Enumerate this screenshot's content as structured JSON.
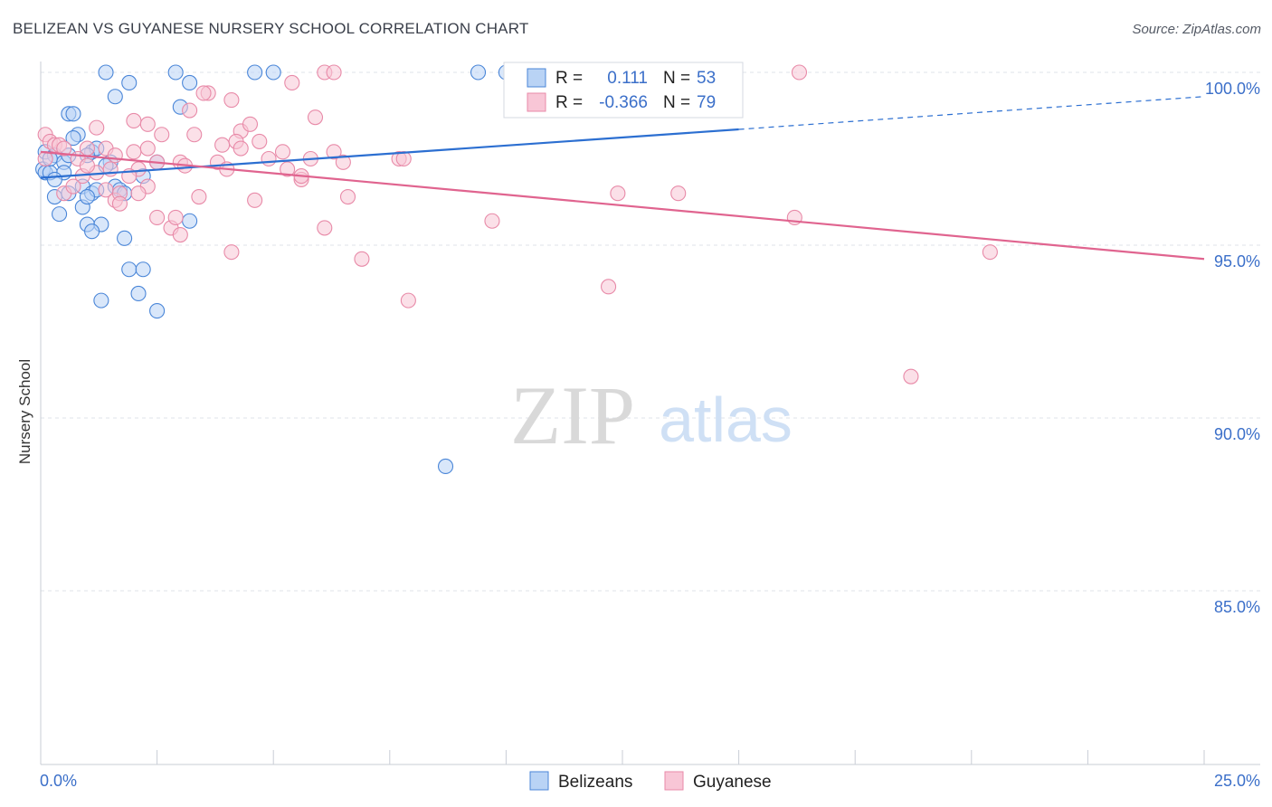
{
  "header": {
    "title": "BELIZEAN VS GUYANESE NURSERY SCHOOL CORRELATION CHART",
    "source": "Source: ZipAtlas.com"
  },
  "watermark": {
    "zip": "ZIP",
    "atlas": "atlas"
  },
  "colors": {
    "blue": "#4a86d8",
    "blue_fill": "#b9d3f5",
    "blue_line": "#2c6fd1",
    "pink": "#e88aa8",
    "pink_fill": "#f8c6d6",
    "pink_line": "#e0648f",
    "axis_text": "#3b6fc9",
    "grid": "#dfe3ea"
  },
  "legend_box": {
    "rows": [
      {
        "r_label": "R =",
        "r_value": "0.111",
        "n_label": "N =",
        "n_value": "53"
      },
      {
        "r_label": "R =",
        "r_value": "-0.366",
        "n_label": "N =",
        "n_value": "79"
      }
    ]
  },
  "bottom_legend": {
    "items": [
      "Belizeans",
      "Guyanese"
    ]
  },
  "chart_data": {
    "type": "scatter",
    "title": "BELIZEAN VS GUYANESE NURSERY SCHOOL CORRELATION CHART",
    "xlabel": "",
    "ylabel": "Nursery School",
    "xlim": [
      0,
      25
    ],
    "ylim": [
      80.5,
      101
    ],
    "x_tick_labels": [
      "0.0%",
      "25.0%"
    ],
    "y_ticks": [
      100,
      95,
      90,
      85
    ],
    "y_tick_labels": [
      "100.0%",
      "95.0%",
      "90.0%",
      "85.0%"
    ],
    "grid": true,
    "series": [
      {
        "name": "Belizeans",
        "r": 0.111,
        "n": 53,
        "trend": {
          "x0": 0,
          "y0": 96.95,
          "x1": 15,
          "y1": 98.35,
          "dashed_to_x": 25,
          "dashed_to_y": 99.3
        },
        "points": [
          [
            1.4,
            100
          ],
          [
            2.9,
            100
          ],
          [
            4.6,
            100
          ],
          [
            5.0,
            100
          ],
          [
            9.4,
            100
          ],
          [
            10.0,
            100
          ],
          [
            1.9,
            99.7
          ],
          [
            3.2,
            99.7
          ],
          [
            1.6,
            99.3
          ],
          [
            3.0,
            99.0
          ],
          [
            0.6,
            98.8
          ],
          [
            0.7,
            98.8
          ],
          [
            0.8,
            98.2
          ],
          [
            0.7,
            98.1
          ],
          [
            0.1,
            97.7
          ],
          [
            0.3,
            97.6
          ],
          [
            0.5,
            97.4
          ],
          [
            1.1,
            97.7
          ],
          [
            1.2,
            97.8
          ],
          [
            1.0,
            97.6
          ],
          [
            1.5,
            97.4
          ],
          [
            1.4,
            97.3
          ],
          [
            2.5,
            97.4
          ],
          [
            2.2,
            97.0
          ],
          [
            0.05,
            97.2
          ],
          [
            0.1,
            97.1
          ],
          [
            0.2,
            97.1
          ],
          [
            0.5,
            97.1
          ],
          [
            0.3,
            96.9
          ],
          [
            0.3,
            96.4
          ],
          [
            0.6,
            96.5
          ],
          [
            0.9,
            96.7
          ],
          [
            1.1,
            96.5
          ],
          [
            1.2,
            96.6
          ],
          [
            1.6,
            96.7
          ],
          [
            1.7,
            96.6
          ],
          [
            1.8,
            96.5
          ],
          [
            0.9,
            96.1
          ],
          [
            0.4,
            95.9
          ],
          [
            1.0,
            95.6
          ],
          [
            1.3,
            95.6
          ],
          [
            1.1,
            95.4
          ],
          [
            3.2,
            95.7
          ],
          [
            1.8,
            95.2
          ],
          [
            1.9,
            94.3
          ],
          [
            2.2,
            94.3
          ],
          [
            1.3,
            93.4
          ],
          [
            2.1,
            93.6
          ],
          [
            2.5,
            93.1
          ],
          [
            8.7,
            88.6
          ],
          [
            0.2,
            97.5
          ],
          [
            0.6,
            97.6
          ],
          [
            1.0,
            96.4
          ]
        ]
      },
      {
        "name": "Guyanese",
        "r": -0.366,
        "n": 79,
        "trend": {
          "x0": 0,
          "y0": 97.7,
          "x1": 25,
          "y1": 94.6
        },
        "points": [
          [
            6.1,
            100
          ],
          [
            6.3,
            100
          ],
          [
            5.4,
            99.7
          ],
          [
            3.6,
            99.4
          ],
          [
            3.5,
            99.4
          ],
          [
            4.1,
            99.2
          ],
          [
            3.2,
            98.9
          ],
          [
            5.9,
            98.7
          ],
          [
            0.1,
            98.2
          ],
          [
            1.2,
            98.4
          ],
          [
            2.0,
            98.6
          ],
          [
            2.3,
            98.5
          ],
          [
            2.6,
            98.2
          ],
          [
            3.3,
            98.2
          ],
          [
            4.3,
            98.3
          ],
          [
            4.5,
            98.5
          ],
          [
            0.2,
            98.0
          ],
          [
            0.3,
            97.9
          ],
          [
            0.4,
            97.9
          ],
          [
            0.5,
            97.8
          ],
          [
            1.0,
            97.8
          ],
          [
            1.4,
            97.8
          ],
          [
            1.6,
            97.6
          ],
          [
            2.0,
            97.7
          ],
          [
            2.3,
            97.8
          ],
          [
            3.9,
            97.9
          ],
          [
            4.2,
            98.0
          ],
          [
            4.3,
            97.8
          ],
          [
            4.7,
            98.0
          ],
          [
            5.2,
            97.7
          ],
          [
            6.3,
            97.7
          ],
          [
            0.1,
            97.5
          ],
          [
            0.8,
            97.5
          ],
          [
            1.5,
            97.2
          ],
          [
            2.1,
            97.2
          ],
          [
            2.5,
            97.4
          ],
          [
            3.0,
            97.4
          ],
          [
            3.1,
            97.3
          ],
          [
            3.8,
            97.4
          ],
          [
            4.0,
            97.2
          ],
          [
            4.9,
            97.5
          ],
          [
            5.3,
            97.2
          ],
          [
            5.8,
            97.5
          ],
          [
            6.5,
            97.4
          ],
          [
            7.7,
            97.5
          ],
          [
            7.8,
            97.5
          ],
          [
            0.9,
            97.0
          ],
          [
            1.2,
            97.1
          ],
          [
            1.9,
            97.0
          ],
          [
            2.3,
            96.7
          ],
          [
            5.6,
            96.9
          ],
          [
            0.5,
            96.5
          ],
          [
            0.7,
            96.7
          ],
          [
            1.4,
            96.6
          ],
          [
            1.6,
            96.3
          ],
          [
            1.7,
            96.5
          ],
          [
            2.1,
            96.5
          ],
          [
            3.4,
            96.4
          ],
          [
            4.6,
            96.3
          ],
          [
            6.6,
            96.4
          ],
          [
            1.7,
            96.2
          ],
          [
            2.5,
            95.8
          ],
          [
            2.8,
            95.5
          ],
          [
            3.0,
            95.3
          ],
          [
            2.9,
            95.8
          ],
          [
            6.1,
            95.5
          ],
          [
            9.7,
            95.7
          ],
          [
            12.4,
            96.5
          ],
          [
            13.7,
            96.5
          ],
          [
            16.2,
            95.8
          ],
          [
            20.4,
            94.8
          ],
          [
            4.1,
            94.8
          ],
          [
            6.9,
            94.6
          ],
          [
            7.9,
            93.4
          ],
          [
            12.2,
            93.8
          ],
          [
            18.7,
            91.2
          ],
          [
            16.3,
            100
          ],
          [
            1.0,
            97.3
          ],
          [
            5.6,
            97.0
          ]
        ]
      }
    ]
  }
}
